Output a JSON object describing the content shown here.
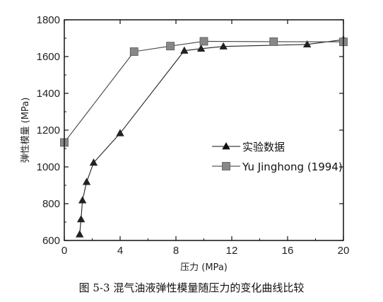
{
  "chart_data": {
    "type": "line",
    "xlabel": "压力 (MPa)",
    "ylabel": "弹性模量 (MPa)",
    "xlim": [
      0,
      20
    ],
    "ylim": [
      600,
      1800
    ],
    "x_ticks": [
      0,
      4,
      8,
      12,
      16,
      20
    ],
    "y_ticks": [
      600,
      800,
      1000,
      1200,
      1400,
      1600,
      1800
    ],
    "grid": false,
    "legend_position": "center-right",
    "series": [
      {
        "name": "实验数据",
        "marker": "triangle",
        "color": "#222222",
        "points": [
          {
            "x": 1.1,
            "y": 633
          },
          {
            "x": 1.2,
            "y": 715
          },
          {
            "x": 1.3,
            "y": 818
          },
          {
            "x": 1.6,
            "y": 918
          },
          {
            "x": 2.1,
            "y": 1023
          },
          {
            "x": 4.0,
            "y": 1183
          },
          {
            "x": 8.6,
            "y": 1632
          },
          {
            "x": 9.8,
            "y": 1643
          },
          {
            "x": 11.4,
            "y": 1655
          },
          {
            "x": 17.4,
            "y": 1666
          },
          {
            "x": 20.0,
            "y": 1692
          }
        ]
      },
      {
        "name": "Yu Jinghong (1994)",
        "marker": "square",
        "color": "#888888",
        "points": [
          {
            "x": 0.0,
            "y": 1133
          },
          {
            "x": 5.0,
            "y": 1627
          },
          {
            "x": 7.6,
            "y": 1657
          },
          {
            "x": 10.0,
            "y": 1683
          },
          {
            "x": 15.0,
            "y": 1681
          },
          {
            "x": 20.0,
            "y": 1680
          }
        ]
      }
    ]
  },
  "caption": "图 5-3 混气油液弹性模量随压力的变化曲线比较"
}
